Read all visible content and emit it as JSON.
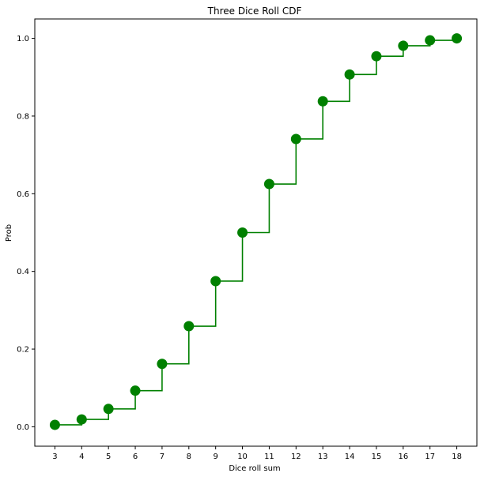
{
  "chart_data": {
    "type": "step",
    "title": "Three Dice Roll CDF",
    "xlabel": "Dice roll sum",
    "ylabel": "Prob",
    "x": [
      3,
      4,
      5,
      6,
      7,
      8,
      9,
      10,
      11,
      12,
      13,
      14,
      15,
      16,
      17,
      18
    ],
    "y": [
      0.005,
      0.019,
      0.046,
      0.093,
      0.162,
      0.259,
      0.375,
      0.5,
      0.625,
      0.741,
      0.838,
      0.907,
      0.954,
      0.981,
      0.995,
      1.0
    ],
    "xticks": [
      "3",
      "4",
      "5",
      "6",
      "7",
      "8",
      "9",
      "10",
      "11",
      "12",
      "13",
      "14",
      "15",
      "16",
      "17",
      "18"
    ],
    "yticks": [
      "0.0",
      "0.2",
      "0.4",
      "0.6",
      "0.8",
      "1.0"
    ],
    "xlim": [
      2.25,
      18.75
    ],
    "ylim": [
      -0.05,
      1.05
    ],
    "grid": false,
    "color": "#008000"
  }
}
